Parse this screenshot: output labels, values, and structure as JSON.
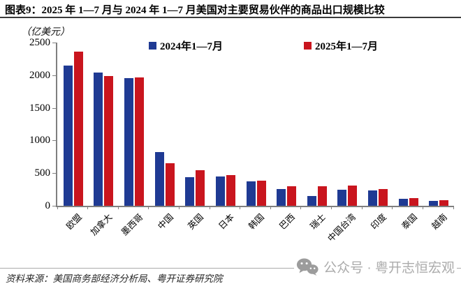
{
  "header": {
    "title": "图表9：2025 年 1—7 月与 2024 年 1—7 月美国对主要贸易伙伴的商品出口规模比较"
  },
  "unit_label": "（亿美元）",
  "chart_data": {
    "type": "bar",
    "title": "2025年1—7月与2024年1—7月美国对主要贸易伙伴的商品出口规模比较",
    "ylabel": "（亿美元）",
    "categories": [
      "欧盟",
      "加拿大",
      "墨西哥",
      "中国",
      "英国",
      "日本",
      "韩国",
      "巴西",
      "瑞士",
      "中国台湾",
      "印度",
      "泰国",
      "越南"
    ],
    "series": [
      {
        "name": "2024年1—7月",
        "color": "#1F3A93",
        "values": [
          2150,
          2045,
          1950,
          820,
          435,
          445,
          370,
          260,
          155,
          250,
          240,
          105,
          75
        ]
      },
      {
        "name": "2025年1—7月",
        "color": "#C9151E",
        "values": [
          2360,
          1985,
          1965,
          655,
          550,
          470,
          385,
          295,
          300,
          305,
          255,
          115,
          90
        ]
      }
    ],
    "ylim": [
      0,
      2500
    ],
    "yticks": [
      0,
      500,
      1000,
      1500,
      2000,
      2500
    ],
    "grid": false,
    "legend_position": "top"
  },
  "footer": {
    "source": "资料来源：美国商务部经济分析局、粤开证券研究院"
  },
  "watermark": {
    "icon": "wechat-icon",
    "text": "公众号 · 粤开志恒宏观"
  }
}
